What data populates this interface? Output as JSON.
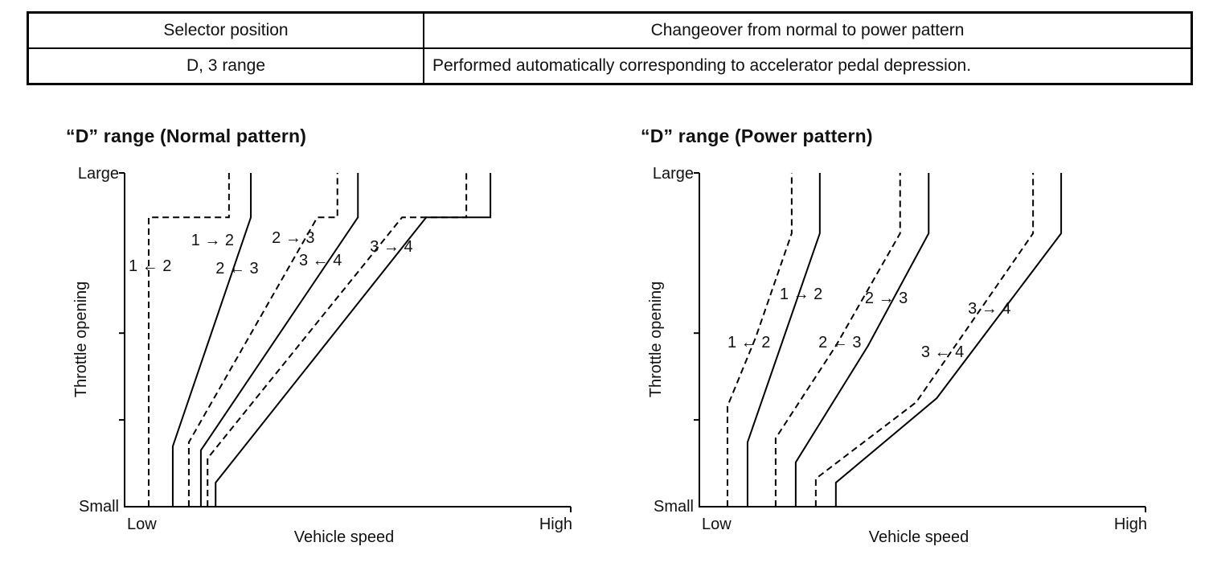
{
  "table": {
    "headers": [
      "Selector position",
      "Changeover from normal to power pattern"
    ],
    "rows": [
      [
        "D, 3 range",
        "Performed automatically corresponding to accelerator pedal depression."
      ]
    ]
  },
  "chart_data": [
    {
      "type": "line",
      "title": "“D” range (Normal pattern)",
      "xlabel": "Vehicle speed",
      "ylabel": "Throttle opening",
      "x_axis_labels": {
        "left": "Low",
        "right": "High"
      },
      "y_axis_labels": {
        "top": "Large",
        "bottom": "Small"
      },
      "axes_note": "qualitative axes, no numeric scale; points in normalized 0-100 units (x: Low→High, y: Small→Large)",
      "line_styles": {
        "solid": "upshift",
        "dashed": "downshift"
      },
      "series": [
        {
          "id": "downshift-2-1",
          "name": "1 ← 2 (downshift)",
          "style": "dashed",
          "points": [
            [
              5.4,
              0
            ],
            [
              5.4,
              86.7
            ],
            [
              23.4,
              86.7
            ],
            [
              23.4,
              100
            ]
          ]
        },
        {
          "id": "upshift-1-2",
          "name": "1 → 2 (upshift)",
          "style": "solid",
          "points": [
            [
              10.8,
              0
            ],
            [
              10.8,
              18.1
            ],
            [
              28.3,
              86.7
            ],
            [
              28.3,
              100
            ]
          ]
        },
        {
          "id": "downshift-3-2",
          "name": "2 ← 3 (downshift)",
          "style": "dashed",
          "points": [
            [
              14.4,
              0
            ],
            [
              14.4,
              19.3
            ],
            [
              43.2,
              86.7
            ],
            [
              47.7,
              86.7
            ],
            [
              47.7,
              100
            ]
          ]
        },
        {
          "id": "upshift-2-3",
          "name": "2 → 3 (upshift)",
          "style": "solid",
          "points": [
            [
              17.1,
              0
            ],
            [
              17.1,
              16.9
            ],
            [
              52.3,
              86.7
            ],
            [
              52.3,
              100
            ]
          ]
        },
        {
          "id": "downshift-4-3",
          "name": "3 ← 4 (downshift)",
          "style": "dashed",
          "points": [
            [
              18.6,
              0
            ],
            [
              18.6,
              14.5
            ],
            [
              62.2,
              86.7
            ],
            [
              76.6,
              86.7
            ],
            [
              76.6,
              100
            ]
          ]
        },
        {
          "id": "upshift-3-4",
          "name": "3 → 4 (upshift)",
          "style": "solid",
          "points": [
            [
              20.4,
              0
            ],
            [
              20.4,
              7.2
            ],
            [
              67.6,
              86.7
            ],
            [
              82.0,
              86.7
            ],
            [
              82.0,
              100
            ]
          ]
        }
      ],
      "annotations": [
        {
          "label": "1 → 2",
          "x": 14.9,
          "y": 80.0
        },
        {
          "label": "2 → 3",
          "x": 33.0,
          "y": 80.7
        },
        {
          "label": "3 → 4",
          "x": 55.0,
          "y": 78.1
        },
        {
          "label": "1 ← 2",
          "x": 0.9,
          "y": 72.3
        },
        {
          "label": "2 ← 3",
          "x": 20.4,
          "y": 71.6
        },
        {
          "label": "3 ← 4",
          "x": 39.1,
          "y": 74.0
        }
      ]
    },
    {
      "type": "line",
      "title": "“D” range (Power pattern)",
      "xlabel": "Vehicle speed",
      "ylabel": "Throttle opening",
      "x_axis_labels": {
        "left": "Low",
        "right": "High"
      },
      "y_axis_labels": {
        "top": "Large",
        "bottom": "Small"
      },
      "axes_note": "qualitative axes, no numeric scale; points in normalized 0-100 units (x: Low→High, y: Small→Large)",
      "line_styles": {
        "solid": "upshift",
        "dashed": "downshift"
      },
      "series": [
        {
          "id": "downshift-2-1",
          "name": "1 ← 2 (downshift)",
          "style": "dashed",
          "points": [
            [
              6.3,
              0
            ],
            [
              6.3,
              30.1
            ],
            [
              12.6,
              50.6
            ],
            [
              20.7,
              81.9
            ],
            [
              20.7,
              100
            ]
          ]
        },
        {
          "id": "upshift-1-2",
          "name": "1 → 2 (upshift)",
          "style": "solid",
          "points": [
            [
              10.8,
              0
            ],
            [
              10.8,
              19.3
            ],
            [
              18.9,
              50.6
            ],
            [
              27.0,
              81.9
            ],
            [
              27.0,
              100
            ]
          ]
        },
        {
          "id": "downshift-3-2",
          "name": "2 ← 3 (downshift)",
          "style": "dashed",
          "points": [
            [
              17.1,
              0
            ],
            [
              17.1,
              20.5
            ],
            [
              30.6,
              48.2
            ],
            [
              45.0,
              81.9
            ],
            [
              45.0,
              100
            ]
          ]
        },
        {
          "id": "upshift-2-3",
          "name": "2 → 3 (upshift)",
          "style": "solid",
          "points": [
            [
              21.6,
              0
            ],
            [
              21.6,
              13.3
            ],
            [
              37.8,
              48.2
            ],
            [
              51.4,
              81.9
            ],
            [
              51.4,
              100
            ]
          ]
        },
        {
          "id": "downshift-4-3",
          "name": "3 ← 4 (downshift)",
          "style": "dashed",
          "points": [
            [
              26.1,
              0
            ],
            [
              26.1,
              8.4
            ],
            [
              48.6,
              31.3
            ],
            [
              74.8,
              81.9
            ],
            [
              74.8,
              100
            ]
          ]
        },
        {
          "id": "upshift-3-4",
          "name": "3 → 4 (upshift)",
          "style": "solid",
          "points": [
            [
              30.6,
              0
            ],
            [
              30.6,
              7.2
            ],
            [
              53.2,
              32.5
            ],
            [
              81.1,
              81.9
            ],
            [
              81.1,
              100
            ]
          ]
        }
      ],
      "annotations": [
        {
          "label": "1 → 2",
          "x": 18.0,
          "y": 63.9
        },
        {
          "label": "2 → 3",
          "x": 37.1,
          "y": 62.7
        },
        {
          "label": "3 → 4",
          "x": 60.2,
          "y": 59.5
        },
        {
          "label": "1 ← 2",
          "x": 6.3,
          "y": 49.4
        },
        {
          "label": "2 ← 3",
          "x": 26.7,
          "y": 49.4
        },
        {
          "label": "3 ← 4",
          "x": 49.7,
          "y": 46.5
        }
      ]
    }
  ]
}
